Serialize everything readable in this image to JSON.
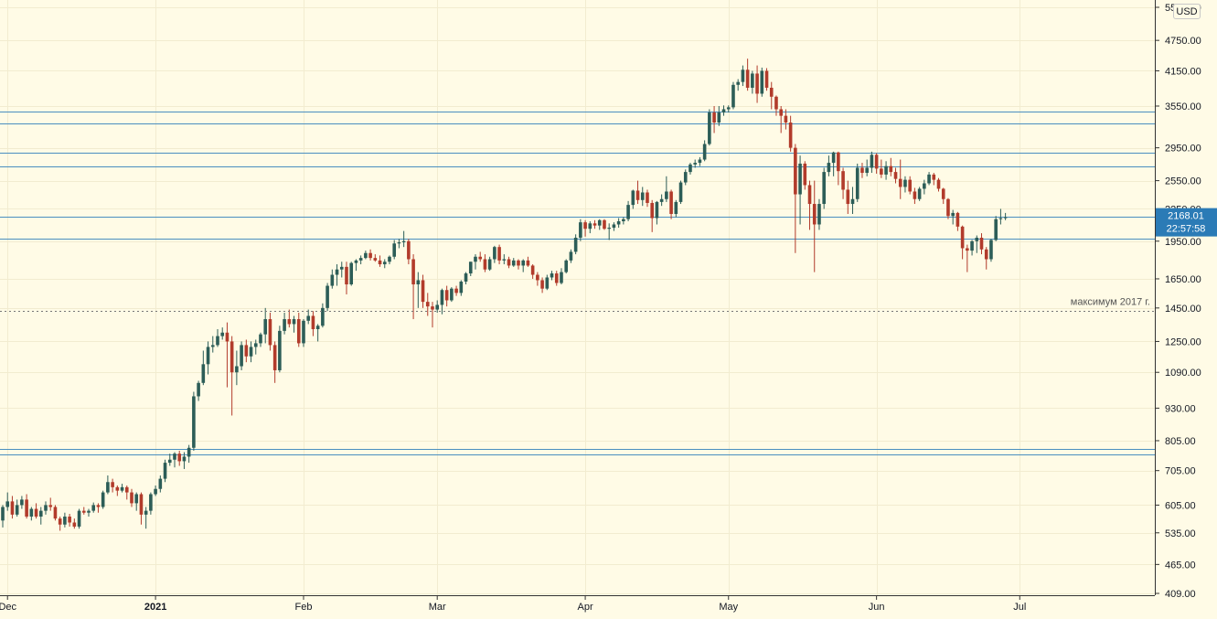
{
  "chart_data": {
    "type": "candlestick",
    "currency": "USD",
    "scale": "log",
    "ylim": [
      409,
      5500
    ],
    "y_ticks": [
      "5500.00",
      "4750.00",
      "4150.00",
      "3550.00",
      "2950.00",
      "2550.00",
      "2250.00",
      "1950.00",
      "1650.00",
      "1450.00",
      "1250.00",
      "1090.00",
      "930.00",
      "805.00",
      "705.00",
      "605.00",
      "535.00",
      "465.00",
      "409.00"
    ],
    "x_labels": [
      {
        "label": "Dec",
        "date": "2020-12-01"
      },
      {
        "label": "2021",
        "date": "2021-01-01",
        "bold": true
      },
      {
        "label": "Feb",
        "date": "2021-02-01"
      },
      {
        "label": "Mar",
        "date": "2021-03-01"
      },
      {
        "label": "Apr",
        "date": "2021-04-01"
      },
      {
        "label": "May",
        "date": "2021-05-01"
      },
      {
        "label": "Jun",
        "date": "2021-06-01"
      },
      {
        "label": "Jul",
        "date": "2021-07-01"
      }
    ],
    "first_date": "2020-11-30",
    "ohlc": [
      [
        565,
        605,
        548,
        600
      ],
      [
        600,
        640,
        590,
        615
      ],
      [
        615,
        630,
        570,
        580
      ],
      [
        580,
        620,
        575,
        605
      ],
      [
        605,
        630,
        595,
        620
      ],
      [
        620,
        635,
        570,
        575
      ],
      [
        575,
        600,
        565,
        595
      ],
      [
        595,
        610,
        570,
        575
      ],
      [
        575,
        600,
        555,
        590
      ],
      [
        590,
        615,
        580,
        605
      ],
      [
        605,
        625,
        590,
        600
      ],
      [
        600,
        605,
        565,
        570
      ],
      [
        570,
        575,
        540,
        555
      ],
      [
        555,
        585,
        548,
        575
      ],
      [
        575,
        582,
        550,
        560
      ],
      [
        560,
        570,
        545,
        550
      ],
      [
        550,
        595,
        545,
        590
      ],
      [
        590,
        600,
        580,
        585
      ],
      [
        585,
        595,
        575,
        590
      ],
      [
        590,
        612,
        585,
        605
      ],
      [
        605,
        610,
        585,
        600
      ],
      [
        600,
        645,
        595,
        640
      ],
      [
        640,
        690,
        635,
        670
      ],
      [
        670,
        680,
        640,
        655
      ],
      [
        655,
        660,
        630,
        645
      ],
      [
        645,
        665,
        640,
        655
      ],
      [
        655,
        660,
        620,
        640
      ],
      [
        640,
        650,
        600,
        610
      ],
      [
        610,
        640,
        590,
        635
      ],
      [
        635,
        640,
        555,
        580
      ],
      [
        580,
        600,
        545,
        590
      ],
      [
        590,
        640,
        580,
        635
      ],
      [
        635,
        660,
        630,
        650
      ],
      [
        650,
        690,
        640,
        680
      ],
      [
        680,
        740,
        670,
        730
      ],
      [
        730,
        760,
        720,
        740
      ],
      [
        740,
        765,
        715,
        760
      ],
      [
        760,
        770,
        720,
        735
      ],
      [
        735,
        765,
        710,
        750
      ],
      [
        750,
        790,
        730,
        780
      ],
      [
        780,
        1000,
        770,
        980
      ],
      [
        980,
        1050,
        960,
        1040
      ],
      [
        1040,
        1200,
        1030,
        1130
      ],
      [
        1130,
        1250,
        1080,
        1220
      ],
      [
        1220,
        1280,
        1190,
        1230
      ],
      [
        1230,
        1320,
        1220,
        1280
      ],
      [
        1280,
        1330,
        1260,
        1300
      ],
      [
        1300,
        1360,
        1020,
        1250
      ],
      [
        1250,
        1280,
        900,
        1090
      ],
      [
        1090,
        1200,
        1030,
        1120
      ],
      [
        1120,
        1250,
        1100,
        1230
      ],
      [
        1230,
        1260,
        1140,
        1170
      ],
      [
        1170,
        1250,
        1140,
        1220
      ],
      [
        1220,
        1260,
        1180,
        1240
      ],
      [
        1240,
        1300,
        1220,
        1290
      ],
      [
        1290,
        1450,
        1240,
        1380
      ],
      [
        1380,
        1420,
        1200,
        1230
      ],
      [
        1230,
        1250,
        1040,
        1100
      ],
      [
        1100,
        1340,
        1090,
        1310
      ],
      [
        1310,
        1420,
        1290,
        1380
      ],
      [
        1380,
        1440,
        1330,
        1350
      ],
      [
        1350,
        1400,
        1300,
        1380
      ],
      [
        1380,
        1420,
        1220,
        1240
      ],
      [
        1240,
        1380,
        1220,
        1370
      ],
      [
        1370,
        1440,
        1350,
        1400
      ],
      [
        1400,
        1430,
        1280,
        1320
      ],
      [
        1320,
        1350,
        1250,
        1340
      ],
      [
        1340,
        1480,
        1330,
        1450
      ],
      [
        1450,
        1620,
        1430,
        1600
      ],
      [
        1600,
        1720,
        1580,
        1680
      ],
      [
        1680,
        1760,
        1600,
        1720
      ],
      [
        1720,
        1780,
        1660,
        1740
      ],
      [
        1740,
        1780,
        1540,
        1610
      ],
      [
        1610,
        1780,
        1600,
        1770
      ],
      [
        1770,
        1800,
        1710,
        1790
      ],
      [
        1790,
        1830,
        1760,
        1810
      ],
      [
        1810,
        1870,
        1800,
        1850
      ],
      [
        1850,
        1880,
        1790,
        1810
      ],
      [
        1810,
        1840,
        1780,
        1790
      ],
      [
        1790,
        1830,
        1740,
        1760
      ],
      [
        1760,
        1800,
        1730,
        1780
      ],
      [
        1780,
        1830,
        1760,
        1820
      ],
      [
        1820,
        1960,
        1800,
        1930
      ],
      [
        1930,
        1970,
        1890,
        1940
      ],
      [
        1940,
        2040,
        1900,
        1950
      ],
      [
        1950,
        1970,
        1760,
        1800
      ],
      [
        1800,
        1840,
        1380,
        1610
      ],
      [
        1610,
        1700,
        1450,
        1640
      ],
      [
        1640,
        1680,
        1450,
        1490
      ],
      [
        1490,
        1550,
        1400,
        1460
      ],
      [
        1460,
        1490,
        1330,
        1440
      ],
      [
        1440,
        1500,
        1420,
        1470
      ],
      [
        1470,
        1580,
        1410,
        1570
      ],
      [
        1570,
        1600,
        1460,
        1500
      ],
      [
        1500,
        1590,
        1490,
        1580
      ],
      [
        1580,
        1600,
        1530,
        1550
      ],
      [
        1550,
        1640,
        1530,
        1630
      ],
      [
        1630,
        1700,
        1610,
        1690
      ],
      [
        1690,
        1780,
        1670,
        1780
      ],
      [
        1780,
        1840,
        1720,
        1820
      ],
      [
        1820,
        1860,
        1780,
        1800
      ],
      [
        1800,
        1840,
        1700,
        1720
      ],
      [
        1720,
        1820,
        1710,
        1800
      ],
      [
        1800,
        1910,
        1770,
        1900
      ],
      [
        1900,
        1920,
        1760,
        1790
      ],
      [
        1790,
        1840,
        1760,
        1800
      ],
      [
        1800,
        1820,
        1730,
        1750
      ],
      [
        1750,
        1810,
        1740,
        1790
      ],
      [
        1790,
        1800,
        1720,
        1750
      ],
      [
        1750,
        1800,
        1700,
        1790
      ],
      [
        1790,
        1820,
        1740,
        1750
      ],
      [
        1750,
        1760,
        1650,
        1680
      ],
      [
        1680,
        1700,
        1600,
        1640
      ],
      [
        1640,
        1660,
        1550,
        1580
      ],
      [
        1580,
        1680,
        1570,
        1660
      ],
      [
        1660,
        1710,
        1640,
        1690
      ],
      [
        1690,
        1710,
        1600,
        1620
      ],
      [
        1620,
        1730,
        1610,
        1700
      ],
      [
        1700,
        1800,
        1690,
        1790
      ],
      [
        1790,
        1880,
        1770,
        1860
      ],
      [
        1860,
        2010,
        1840,
        1980
      ],
      [
        1980,
        2150,
        1950,
        2120
      ],
      [
        2120,
        2140,
        1990,
        2060
      ],
      [
        2060,
        2130,
        2020,
        2110
      ],
      [
        2110,
        2140,
        2060,
        2090
      ],
      [
        2090,
        2150,
        2050,
        2140
      ],
      [
        2140,
        2150,
        2050,
        2060
      ],
      [
        2060,
        2110,
        1960,
        2070
      ],
      [
        2070,
        2120,
        2040,
        2100
      ],
      [
        2100,
        2160,
        2070,
        2130
      ],
      [
        2130,
        2170,
        2100,
        2150
      ],
      [
        2150,
        2330,
        2130,
        2290
      ],
      [
        2290,
        2450,
        2250,
        2440
      ],
      [
        2440,
        2550,
        2300,
        2340
      ],
      [
        2340,
        2480,
        2280,
        2420
      ],
      [
        2420,
        2450,
        2270,
        2310
      ],
      [
        2310,
        2340,
        2030,
        2160
      ],
      [
        2160,
        2330,
        2100,
        2320
      ],
      [
        2320,
        2400,
        2280,
        2350
      ],
      [
        2350,
        2600,
        2320,
        2430
      ],
      [
        2430,
        2450,
        2150,
        2200
      ],
      [
        2200,
        2340,
        2170,
        2320
      ],
      [
        2320,
        2550,
        2300,
        2530
      ],
      [
        2530,
        2680,
        2500,
        2650
      ],
      [
        2650,
        2760,
        2620,
        2740
      ],
      [
        2740,
        2800,
        2700,
        2760
      ],
      [
        2760,
        2830,
        2720,
        2800
      ],
      [
        2800,
        3050,
        2780,
        3000
      ],
      [
        3000,
        3500,
        2980,
        3450
      ],
      [
        3450,
        3550,
        3150,
        3300
      ],
      [
        3300,
        3550,
        3250,
        3450
      ],
      [
        3450,
        3560,
        3400,
        3500
      ],
      [
        3500,
        3560,
        3450,
        3530
      ],
      [
        3530,
        3950,
        3500,
        3900
      ],
      [
        3900,
        4000,
        3800,
        3950
      ],
      [
        3950,
        4250,
        3880,
        4170
      ],
      [
        4170,
        4380,
        3800,
        3850
      ],
      [
        3850,
        4150,
        3750,
        4100
      ],
      [
        4100,
        4250,
        3600,
        3750
      ],
      [
        3750,
        4210,
        3700,
        4150
      ],
      [
        4150,
        4200,
        3800,
        3850
      ],
      [
        3850,
        3950,
        3500,
        3700
      ],
      [
        3700,
        3720,
        3400,
        3500
      ],
      [
        3500,
        3550,
        3150,
        3400
      ],
      [
        3400,
        3500,
        3200,
        3300
      ],
      [
        3300,
        3400,
        2900,
        2950
      ],
      [
        2950,
        3000,
        1850,
        2400
      ],
      [
        2400,
        2850,
        2100,
        2750
      ],
      [
        2750,
        2780,
        2450,
        2500
      ],
      [
        2500,
        2550,
        2050,
        2300
      ],
      [
        2300,
        2550,
        1700,
        2100
      ],
      [
        2100,
        2350,
        2050,
        2300
      ],
      [
        2300,
        2700,
        2250,
        2650
      ],
      [
        2650,
        2850,
        2600,
        2760
      ],
      [
        2760,
        2900,
        2600,
        2890
      ],
      [
        2890,
        2900,
        2500,
        2660
      ],
      [
        2660,
        2700,
        2350,
        2450
      ],
      [
        2450,
        2550,
        2200,
        2300
      ],
      [
        2300,
        2480,
        2200,
        2350
      ],
      [
        2350,
        2750,
        2320,
        2700
      ],
      [
        2700,
        2760,
        2580,
        2640
      ],
      [
        2640,
        2800,
        2600,
        2700
      ],
      [
        2700,
        2900,
        2640,
        2860
      ],
      [
        2860,
        2880,
        2630,
        2690
      ],
      [
        2690,
        2800,
        2580,
        2620
      ],
      [
        2620,
        2780,
        2560,
        2720
      ],
      [
        2720,
        2820,
        2600,
        2650
      ],
      [
        2650,
        2700,
        2520,
        2570
      ],
      [
        2570,
        2800,
        2350,
        2480
      ],
      [
        2480,
        2600,
        2420,
        2560
      ],
      [
        2560,
        2600,
        2400,
        2430
      ],
      [
        2430,
        2470,
        2300,
        2350
      ],
      [
        2350,
        2480,
        2330,
        2460
      ],
      [
        2460,
        2560,
        2400,
        2520
      ],
      [
        2520,
        2650,
        2500,
        2620
      ],
      [
        2620,
        2640,
        2500,
        2560
      ],
      [
        2560,
        2580,
        2430,
        2460
      ],
      [
        2460,
        2470,
        2300,
        2350
      ],
      [
        2350,
        2360,
        2150,
        2180
      ],
      [
        2180,
        2240,
        2100,
        2210
      ],
      [
        2210,
        2220,
        2040,
        2080
      ],
      [
        2080,
        2090,
        1800,
        1890
      ],
      [
        1890,
        1920,
        1700,
        1870
      ],
      [
        1870,
        1960,
        1830,
        1950
      ],
      [
        1950,
        2000,
        1850,
        1980
      ],
      [
        1980,
        2020,
        1840,
        1880
      ],
      [
        1880,
        1900,
        1720,
        1800
      ],
      [
        1800,
        1970,
        1780,
        1960
      ],
      [
        1960,
        2180,
        1950,
        2150
      ],
      [
        2150,
        2250,
        2100,
        2160
      ],
      [
        2160,
        2210,
        2140,
        2168
      ]
    ],
    "price_lines": [
      {
        "value": 3470
      },
      {
        "value": 3280
      },
      {
        "value": 2890
      },
      {
        "value": 2720
      },
      {
        "value": 2175
      },
      {
        "value": 1975
      },
      {
        "value": 775
      },
      {
        "value": 758
      }
    ],
    "dotted_line": {
      "value": 1431,
      "label": "максимум 2017 г."
    },
    "last_price": {
      "value": "2168.01",
      "countdown": "22:57:58",
      "level": 2168
    },
    "colors": {
      "up": "#2c5d57",
      "down": "#b23b2b",
      "background": "#fffbe6",
      "hline": "#4a8fc0",
      "price_badge": "#2b7bb6",
      "grid": "#f2ecd0"
    }
  }
}
